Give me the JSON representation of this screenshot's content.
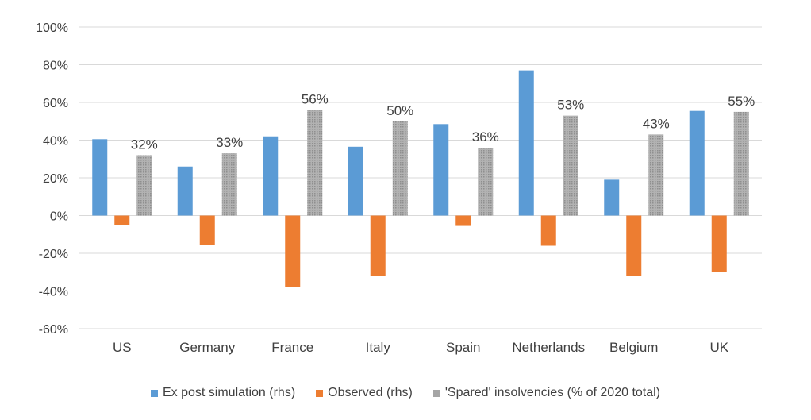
{
  "chart_data": {
    "type": "bar",
    "categories": [
      "US",
      "Germany",
      "France",
      "Italy",
      "Spain",
      "Netherlands",
      "Belgium",
      "UK"
    ],
    "series": [
      {
        "name": "Ex post simulation (rhs)",
        "color": "#5B9BD5",
        "values": [
          40.5,
          26,
          42,
          36.5,
          48.5,
          77,
          19,
          55.5
        ]
      },
      {
        "name": "Observed (rhs)",
        "color": "#ED7D31",
        "values": [
          -5,
          -15.5,
          -38,
          -32,
          -5.5,
          -16,
          -32,
          -30
        ]
      },
      {
        "name": "'Spared' insolvencies (% of 2020 total)",
        "color": "#A5A5A5",
        "pattern": "dotted",
        "values": [
          32,
          33,
          56,
          50,
          36,
          53,
          43,
          55
        ]
      }
    ],
    "data_labels": [
      "32%",
      "33%",
      "56%",
      "50%",
      "36%",
      "53%",
      "43%",
      "55%"
    ],
    "y_ticks": [
      "100%",
      "80%",
      "60%",
      "40%",
      "20%",
      "0%",
      "-20%",
      "-40%",
      "-60%"
    ],
    "ylim": [
      -60,
      100
    ],
    "y_step": 20,
    "grid": true,
    "legend_position": "bottom"
  }
}
